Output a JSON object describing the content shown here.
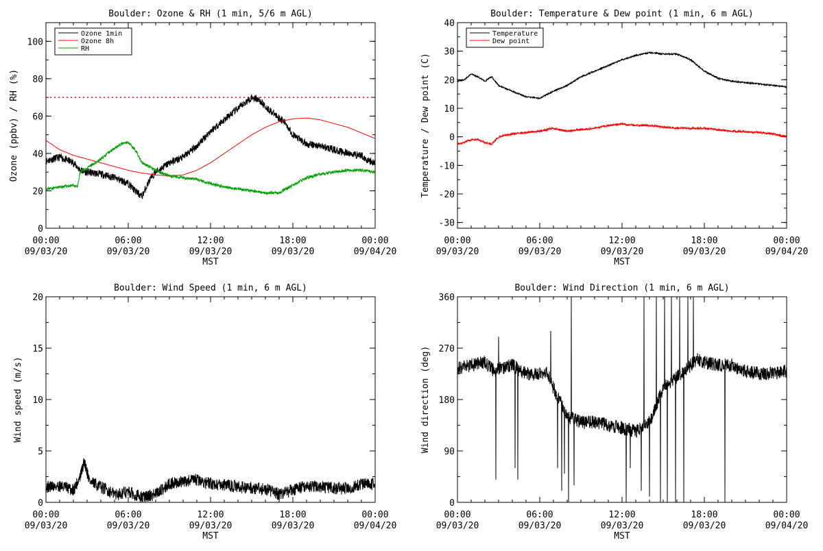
{
  "chart_data": [
    {
      "type": "line",
      "title": "Boulder: Ozone & RH (1 min, 5/6 m AGL)",
      "ylabel": "Ozone (ppbv) / RH (%)",
      "xlabel": "MST",
      "xlim_hours": [
        0,
        24
      ],
      "ylim": [
        0,
        110
      ],
      "yticks": [
        0,
        20,
        40,
        60,
        80,
        100
      ],
      "xticks": [
        {
          "time": "00:00",
          "date": "09/03/20"
        },
        {
          "time": "06:00",
          "date": "09/03/20"
        },
        {
          "time": "12:00",
          "date": "09/03/20"
        },
        {
          "time": "18:00",
          "date": "09/03/20"
        },
        {
          "time": "00:00",
          "date": "09/04/20"
        }
      ],
      "legend": {
        "position": "top-left",
        "entries": [
          "Ozone 1min",
          "Ozone 8h",
          "RH"
        ]
      },
      "reference_line": {
        "y": 70,
        "color": "#ff0000",
        "style": "dotted"
      },
      "series": [
        {
          "name": "Ozone 1min",
          "color": "#000000",
          "noise": 2.0,
          "seed": 11,
          "x": [
            0,
            1,
            2,
            2.5,
            3,
            4,
            5,
            6,
            6.5,
            7,
            7.5,
            8,
            9,
            10,
            11,
            12,
            13,
            14,
            15,
            15.5,
            16,
            17,
            17.5,
            18,
            19,
            20,
            21,
            22,
            23,
            23.5,
            24
          ],
          "y": [
            36,
            38,
            35,
            31,
            30,
            29,
            27,
            24,
            20,
            17,
            25,
            30,
            35,
            38,
            44,
            52,
            58,
            64,
            70,
            69,
            65,
            59,
            56,
            50,
            45,
            44,
            42,
            40,
            39,
            36,
            35
          ]
        },
        {
          "name": "Ozone 8h",
          "color": "#ff0000",
          "noise": 0,
          "x": [
            0,
            1,
            2,
            3,
            4,
            5,
            6,
            7,
            8,
            9,
            10,
            11,
            12,
            13,
            14,
            15,
            16,
            17,
            18,
            19,
            20,
            21,
            22,
            23,
            24
          ],
          "y": [
            47,
            42,
            39,
            37,
            35,
            33,
            31,
            29.5,
            28.5,
            28,
            28.5,
            31,
            35,
            40,
            45,
            50,
            54,
            57,
            58.5,
            59,
            58,
            56,
            54,
            51,
            48
          ]
        },
        {
          "name": "RH",
          "color": "#00a000",
          "noise": 0.8,
          "seed": 23,
          "x": [
            0,
            1,
            2,
            2.3,
            2.5,
            3,
            4,
            5,
            5.5,
            6,
            6.5,
            7,
            7.5,
            8,
            9,
            10,
            11,
            12,
            13,
            14,
            15,
            16,
            17,
            18,
            19,
            20,
            21,
            22,
            23,
            24
          ],
          "y": [
            21,
            22,
            23,
            22,
            30,
            32,
            37,
            43,
            45,
            46,
            42,
            35,
            33,
            31,
            28,
            27,
            26,
            24,
            22,
            21,
            20,
            19,
            19,
            23,
            27,
            29,
            30,
            31,
            31,
            30
          ]
        }
      ]
    },
    {
      "type": "line",
      "title": "Boulder: Temperature & Dew point (1 min, 6 m AGL)",
      "ylabel": "Temperature / Dew point (C)",
      "xlabel": "MST",
      "xlim_hours": [
        0,
        24
      ],
      "ylim": [
        -32,
        40
      ],
      "yticks": [
        -30,
        -20,
        -10,
        0,
        10,
        20,
        30,
        40
      ],
      "xticks": [
        {
          "time": "00:00",
          "date": "09/03/20"
        },
        {
          "time": "06:00",
          "date": "09/03/20"
        },
        {
          "time": "12:00",
          "date": "09/03/20"
        },
        {
          "time": "18:00",
          "date": "09/03/20"
        },
        {
          "time": "00:00",
          "date": "09/04/20"
        }
      ],
      "legend": {
        "position": "top-left",
        "entries": [
          "Temperature",
          "Dew point"
        ]
      },
      "series": [
        {
          "name": "Temperature",
          "color": "#000000",
          "noise": 0.25,
          "seed": 5,
          "x": [
            0,
            0.5,
            1,
            1.5,
            2,
            2.5,
            3,
            4,
            5,
            6,
            7,
            8,
            9,
            10,
            11,
            12,
            13,
            14,
            15,
            16,
            17,
            18,
            19,
            20,
            21,
            22,
            23,
            24
          ],
          "y": [
            19.5,
            20,
            22,
            21,
            19.5,
            21,
            18,
            16,
            14,
            13.5,
            16,
            18,
            21,
            23,
            25,
            27,
            28.5,
            29.5,
            29,
            29,
            27,
            23,
            20.5,
            19.5,
            19,
            18.5,
            18,
            17.5
          ]
        },
        {
          "name": "Dew point",
          "color": "#ff0000",
          "noise": 0.35,
          "seed": 9,
          "x": [
            0,
            0.5,
            1,
            1.5,
            2,
            2.5,
            3,
            4,
            5,
            6,
            7,
            8,
            9,
            10,
            11,
            12,
            13,
            14,
            15,
            16,
            17,
            18,
            19,
            20,
            21,
            22,
            23,
            24
          ],
          "y": [
            -2.5,
            -2,
            -1,
            -1,
            -2,
            -2.5,
            0,
            1,
            1.5,
            2,
            3,
            2,
            2.5,
            3,
            4,
            4.5,
            4,
            4,
            3.5,
            3,
            3,
            3,
            2.5,
            2,
            1.8,
            1.5,
            1,
            0
          ]
        }
      ]
    },
    {
      "type": "line",
      "title": "Boulder: Wind Speed (1 min, 6 m AGL)",
      "ylabel": "Wind speed (m/s)",
      "xlabel": "MST",
      "xlim_hours": [
        0,
        24
      ],
      "ylim": [
        0,
        20
      ],
      "yticks": [
        0,
        5,
        10,
        15,
        20
      ],
      "xticks": [
        {
          "time": "00:00",
          "date": "09/03/20"
        },
        {
          "time": "06:00",
          "date": "09/03/20"
        },
        {
          "time": "12:00",
          "date": "09/03/20"
        },
        {
          "time": "18:00",
          "date": "09/03/20"
        },
        {
          "time": "00:00",
          "date": "09/04/20"
        }
      ],
      "series": [
        {
          "color": "#000000",
          "noise": 0.6,
          "seed": 31,
          "x": [
            0,
            1,
            2,
            2.5,
            2.8,
            3.2,
            4,
            5,
            6,
            7,
            8,
            9,
            10,
            11,
            12,
            13,
            14,
            15,
            16,
            17,
            18,
            19,
            20,
            21,
            22,
            23,
            24
          ],
          "y": [
            1.5,
            1.6,
            1.2,
            2.5,
            4.0,
            2.0,
            1.5,
            0.8,
            1.0,
            0.5,
            0.8,
            1.8,
            2.0,
            2.2,
            1.8,
            1.7,
            1.5,
            1.4,
            1.3,
            0.8,
            1.2,
            1.6,
            1.5,
            1.4,
            1.3,
            1.8,
            1.8
          ]
        }
      ]
    },
    {
      "type": "line",
      "title": "Boulder: Wind Direction (1 min, 6 m AGL)",
      "ylabel": "Wind direction (deg)",
      "xlabel": "MST",
      "xlim_hours": [
        0,
        24
      ],
      "ylim": [
        0,
        360
      ],
      "yticks": [
        0,
        90,
        180,
        270,
        360
      ],
      "xticks": [
        {
          "time": "00:00",
          "date": "09/03/20"
        },
        {
          "time": "06:00",
          "date": "09/03/20"
        },
        {
          "time": "12:00",
          "date": "09/03/20"
        },
        {
          "time": "18:00",
          "date": "09/03/20"
        },
        {
          "time": "00:00",
          "date": "09/04/20"
        }
      ],
      "series": [
        {
          "color": "#000000",
          "noise": 12,
          "seed": 47,
          "x": [
            0,
            1,
            2,
            2.7,
            3,
            4,
            5,
            6,
            6.5,
            7,
            8,
            9,
            10,
            11,
            12,
            13,
            14,
            15,
            16,
            17,
            17.5,
            18,
            19,
            20,
            21,
            22,
            23,
            24
          ],
          "y": [
            235,
            240,
            245,
            230,
            235,
            240,
            225,
            225,
            230,
            200,
            150,
            140,
            140,
            135,
            130,
            125,
            140,
            200,
            220,
            240,
            250,
            245,
            240,
            240,
            230,
            225,
            225,
            230
          ],
          "spikes": [
            [
              2.8,
              40
            ],
            [
              3.0,
              290
            ],
            [
              3.9,
              250
            ],
            [
              4.2,
              60
            ],
            [
              4.4,
              40
            ],
            [
              6.8,
              300
            ],
            [
              7.3,
              60
            ],
            [
              7.6,
              20
            ],
            [
              7.8,
              50
            ],
            [
              8.1,
              0
            ],
            [
              8.3,
              360
            ],
            [
              8.5,
              30
            ],
            [
              12.3,
              0
            ],
            [
              12.6,
              60
            ],
            [
              13.4,
              20
            ],
            [
              13.6,
              360
            ],
            [
              14.0,
              10
            ],
            [
              14.5,
              360
            ],
            [
              14.8,
              0
            ],
            [
              15.1,
              360
            ],
            [
              15.3,
              0
            ],
            [
              15.6,
              360
            ],
            [
              15.9,
              0
            ],
            [
              16.2,
              360
            ],
            [
              16.5,
              0
            ],
            [
              16.8,
              360
            ],
            [
              17.2,
              360
            ],
            [
              19.5,
              0
            ]
          ]
        }
      ]
    }
  ]
}
